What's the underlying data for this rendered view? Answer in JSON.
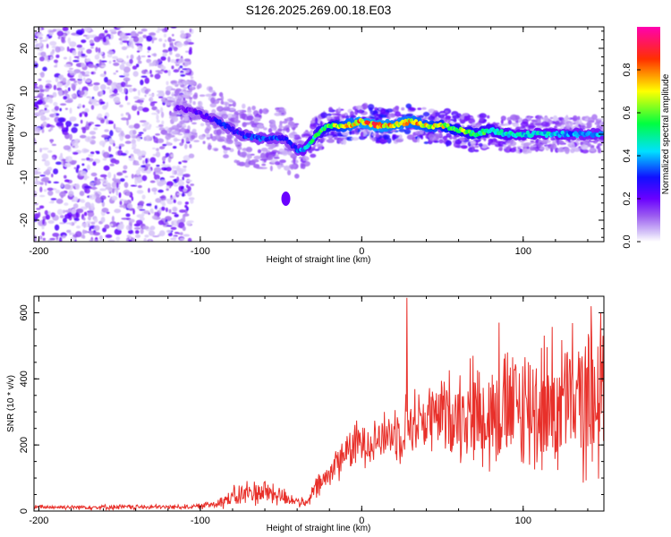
{
  "title": "S126.2025.269.00.18.E03",
  "chart_data": [
    {
      "type": "heatmap",
      "name": "spectrogram",
      "xlabel": "Height of straight line (km)",
      "ylabel": "Frequency (Hz)",
      "xlim": [
        -203,
        150
      ],
      "ylim": [
        -25,
        25
      ],
      "xticks": [
        -200,
        -100,
        0,
        100
      ],
      "yticks": [
        -20,
        -10,
        0,
        10,
        20
      ],
      "colorbar": {
        "label": "Normalized spectral amplitude",
        "range": [
          0,
          1
        ],
        "ticks": [
          0.0,
          0.2,
          0.4,
          0.6,
          0.8
        ],
        "colormap": [
          "#ffffff",
          "#d8c8f8",
          "#9b5cf0",
          "#6a00ff",
          "#1010ff",
          "#00e0ff",
          "#00ff40",
          "#ffff00",
          "#ff3000",
          "#ff00b0"
        ]
      },
      "ridge": {
        "description": "Dominant frequency track",
        "x": [
          -110,
          -95,
          -85,
          -75,
          -65,
          -55,
          -48,
          -42,
          -38,
          -34,
          -28,
          -20,
          -10,
          0,
          10,
          20,
          30,
          40,
          50,
          60,
          70,
          80,
          90,
          100,
          110,
          120,
          130,
          140,
          150
        ],
        "y": [
          6,
          4,
          2,
          0,
          -1,
          -1,
          -1,
          -3,
          -4,
          -3,
          0,
          2,
          2,
          3,
          2,
          2,
          3,
          2,
          2,
          1,
          0,
          1,
          0,
          0,
          0,
          0,
          0,
          0,
          0
        ],
        "amplitude": [
          0.2,
          0.25,
          0.3,
          0.3,
          0.35,
          0.35,
          0.3,
          0.3,
          0.4,
          0.45,
          0.55,
          0.65,
          0.75,
          0.85,
          0.85,
          0.8,
          0.8,
          0.75,
          0.7,
          0.65,
          0.6,
          0.55,
          0.5,
          0.45,
          0.45,
          0.45,
          0.4,
          0.4,
          0.4
        ]
      },
      "blob": {
        "x": -47,
        "y": -15,
        "amplitude": 0.2
      }
    },
    {
      "type": "line",
      "name": "snr",
      "xlabel": "Height of straight line (km)",
      "ylabel": "SNR (10 * v/v)",
      "xlim": [
        -203,
        150
      ],
      "ylim": [
        0,
        650
      ],
      "xticks": [
        -200,
        -100,
        0,
        100
      ],
      "yticks": [
        0,
        200,
        400,
        600
      ],
      "color": "#e8302a",
      "series": [
        {
          "name": "SNR",
          "x": [
            -203,
            -180,
            -150,
            -120,
            -100,
            -90,
            -80,
            -70,
            -60,
            -50,
            -40,
            -34,
            -30,
            -25,
            -20,
            -15,
            -10,
            -5,
            0,
            5,
            10,
            15,
            20,
            25,
            27,
            30,
            40,
            50,
            60,
            70,
            80,
            85,
            90,
            100,
            110,
            120,
            130,
            140,
            150
          ],
          "base": [
            12,
            12,
            12,
            12,
            14,
            25,
            40,
            55,
            60,
            45,
            30,
            20,
            60,
            85,
            110,
            150,
            180,
            195,
            210,
            215,
            220,
            225,
            240,
            250,
            260,
            265,
            280,
            290,
            300,
            310,
            290,
            300,
            300,
            310,
            320,
            320,
            330,
            330,
            330
          ],
          "spread": [
            8,
            8,
            10,
            8,
            10,
            20,
            40,
            50,
            50,
            40,
            20,
            15,
            40,
            50,
            60,
            70,
            80,
            80,
            90,
            90,
            90,
            90,
            100,
            120,
            120,
            120,
            130,
            150,
            170,
            200,
            220,
            230,
            240,
            250,
            260,
            270,
            270,
            270,
            270
          ],
          "peaks": [
            {
              "x": 28,
              "y": 645
            },
            {
              "x": 85,
              "y": 570
            },
            {
              "x": 142,
              "y": 620
            },
            {
              "x": 148,
              "y": 600
            }
          ]
        }
      ]
    }
  ]
}
